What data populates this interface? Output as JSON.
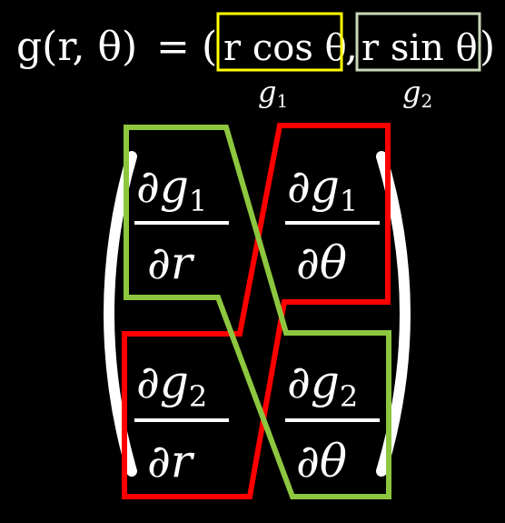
{
  "equation": {
    "lhs": "g(r, θ)",
    "equals": "=",
    "open_paren": "(",
    "comma": ",",
    "close_paren": ")",
    "component_1": "r cos θ",
    "component_2": "r sin θ"
  },
  "labels": {
    "g1": {
      "base": "g",
      "sub": "1"
    },
    "g2": {
      "base": "g",
      "sub": "2"
    }
  },
  "matrix": {
    "cells": [
      {
        "num_base": "∂g",
        "num_sub": "1",
        "den": "∂r"
      },
      {
        "num_base": "∂g",
        "num_sub": "1",
        "den": "∂θ"
      },
      {
        "num_base": "∂g",
        "num_sub": "2",
        "den": "∂r"
      },
      {
        "num_base": "∂g",
        "num_sub": "2",
        "den": "∂θ"
      }
    ]
  },
  "colors": {
    "background": "#000000",
    "text": "#ffffff",
    "g1_highlight": "#ffff00",
    "g2_highlight": "#c8d8b8",
    "g1_label": "#ffff33",
    "g2_label": "#9ed04a",
    "green_outline": "#8dc63f",
    "red_outline": "#ff0000"
  }
}
